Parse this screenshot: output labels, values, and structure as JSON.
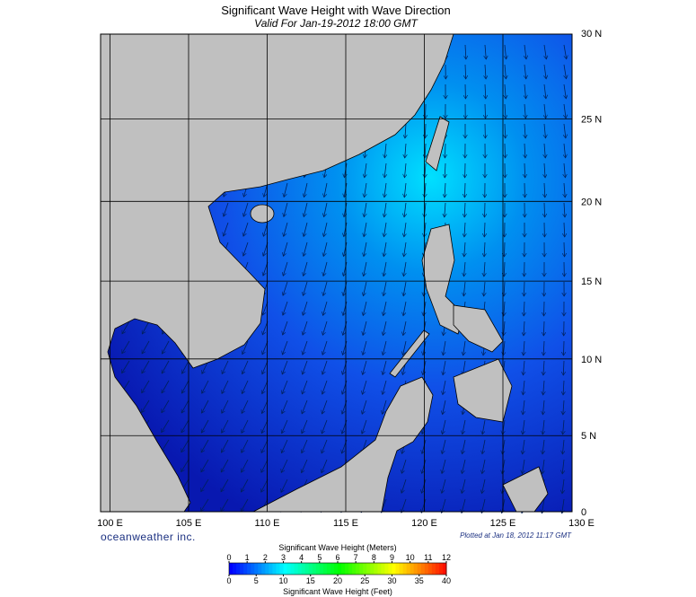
{
  "title": "Significant Wave Height with Wave Direction",
  "subtitle": "Valid For Jan-19-2012 18:00 GMT",
  "map": {
    "lat_ticks": [
      {
        "value": 30,
        "label": "30 N"
      },
      {
        "value": 25,
        "label": "25 N"
      },
      {
        "value": 20,
        "label": "20 N"
      },
      {
        "value": 15,
        "label": "15 N"
      },
      {
        "value": 10,
        "label": "10 N"
      },
      {
        "value": 5,
        "label": "5 N"
      },
      0
    ],
    "lon_ticks": [
      {
        "value": 100,
        "label": "100 E"
      },
      {
        "value": 105,
        "label": "105 E"
      },
      {
        "value": 110,
        "label": "110 E"
      },
      {
        "value": 115,
        "label": "115 E"
      },
      {
        "value": 120,
        "label": "120 E"
      },
      {
        "value": 125,
        "label": "125 E"
      },
      {
        "value": 130,
        "label": "130 E"
      }
    ]
  },
  "credit": "oceanweather inc.",
  "plotted": "Plotted at Jan 18, 2012 11:17 GMT",
  "colorbar": {
    "meters_title": "Significant Wave Height (Meters)",
    "meters_ticks": [
      0,
      1,
      2,
      3,
      4,
      5,
      6,
      7,
      8,
      9,
      10,
      11,
      12
    ],
    "feet_title": "Significant Wave Height (Feet)",
    "feet_ticks": [
      0,
      5,
      10,
      15,
      20,
      25,
      30,
      35,
      40
    ]
  }
}
